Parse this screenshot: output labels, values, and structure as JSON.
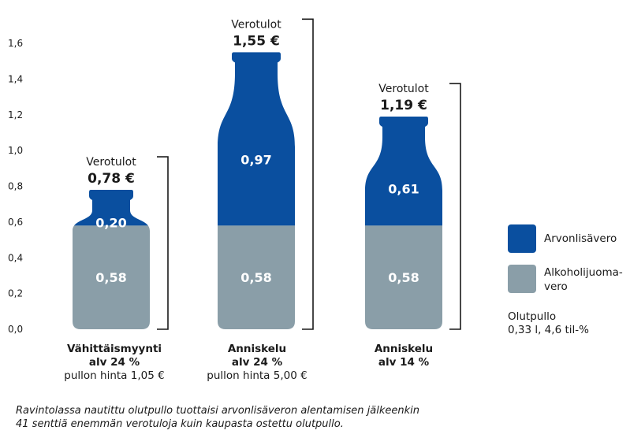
{
  "chart_data": {
    "type": "bar",
    "subtype": "stacked (bottle-shaped)",
    "yticks": [
      "0,0",
      "0,2",
      "0,4",
      "0,6",
      "0,8",
      "1,0",
      "1,2",
      "1,4",
      "1,6"
    ],
    "ylim": [
      0,
      1.6
    ],
    "categories": [
      {
        "line1": "Vähittäismyynti",
        "line2": "alv 24 %",
        "line3": "pullon hinta 1,05 €"
      },
      {
        "line1": "Anniskelu",
        "line2": "alv 24 %",
        "line3": "pullon hinta 5,00 €"
      },
      {
        "line1": "Anniskelu",
        "line2": "alv 14 %",
        "line3": ""
      }
    ],
    "series": [
      {
        "name": "Alkoholijuomavero",
        "legend_line1": "Alkoholijuoma-",
        "legend_line2": "vero",
        "values": [
          0.58,
          0.58,
          0.58
        ],
        "labels": [
          "0,58",
          "0,58",
          "0,58"
        ],
        "color": "#8a9ea8"
      },
      {
        "name": "Arvonlisävero",
        "values": [
          0.2,
          0.97,
          0.61
        ],
        "labels": [
          "0,20",
          "0,97",
          "0,61"
        ],
        "color": "#0a4f9f"
      }
    ],
    "totals": {
      "label": "Verotulot",
      "values": [
        0.78,
        1.55,
        1.19
      ],
      "labels": [
        "0,78 €",
        "1,55 €",
        "1,19 €"
      ]
    }
  },
  "note": {
    "line1": "Olutpullo",
    "line2": "0,33 l, 4,6 til-%"
  },
  "caption": {
    "line1": "Ravintolassa nautittu olutpullo tuottaisi arvonlisäveron alentamisen jälkeenkin",
    "line2": "41 senttiä enemmän verotuloja kuin kaupasta ostettu olutpullo."
  }
}
